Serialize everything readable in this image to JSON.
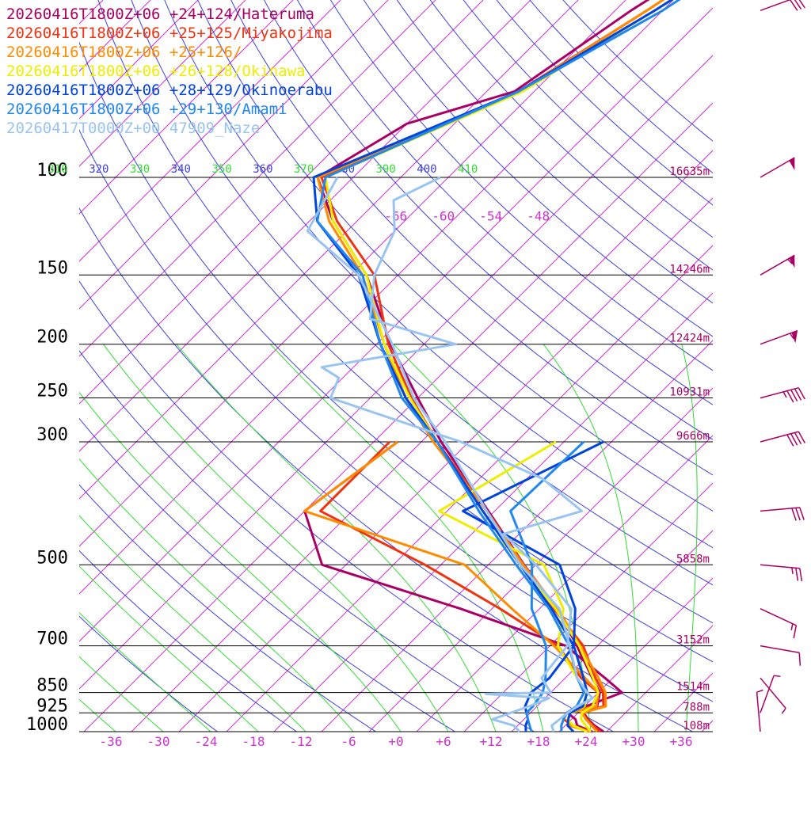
{
  "chart_data": {
    "type": "line",
    "chart_kind": "skew-T log-P sounding",
    "colors": {
      "isobar": "#000000",
      "isotherm": "#cc33cc",
      "dry_adiabat": "#4040dd",
      "moist_adiabat": "#33dd33",
      "height_label": "#aa0066",
      "temp_tick": "#cc33cc"
    },
    "pressure_ticks": [
      {
        "p": 100,
        "label": "100",
        "height": "16635m"
      },
      {
        "p": 150,
        "label": "150",
        "height": "14246m"
      },
      {
        "p": 200,
        "label": "200",
        "height": "12424m"
      },
      {
        "p": 250,
        "label": "250",
        "height": "10931m"
      },
      {
        "p": 300,
        "label": "300",
        "height": "9666m"
      },
      {
        "p": 500,
        "label": "500",
        "height": "5858m"
      },
      {
        "p": 700,
        "label": "700",
        "height": "3152m"
      },
      {
        "p": 850,
        "label": "850",
        "height": "1514m"
      },
      {
        "p": 925,
        "label": "925",
        "height": "788m"
      },
      {
        "p": 1000,
        "label": "1000",
        "height": "108m"
      }
    ],
    "temp_ticks": [
      {
        "t": -36,
        "label": "-36"
      },
      {
        "t": -30,
        "label": "-30"
      },
      {
        "t": -24,
        "label": "-24"
      },
      {
        "t": -18,
        "label": "-18"
      },
      {
        "t": -12,
        "label": "-12"
      },
      {
        "t": -6,
        "label": "-6"
      },
      {
        "t": 0,
        "label": "+0"
      },
      {
        "t": 6,
        "label": "+6"
      },
      {
        "t": 12,
        "label": "+12"
      },
      {
        "t": 18,
        "label": "+18"
      },
      {
        "t": 24,
        "label": "+24"
      },
      {
        "t": 30,
        "label": "+30"
      },
      {
        "t": 36,
        "label": "+36"
      }
    ],
    "upper_temp_labels": [
      {
        "t": -66,
        "label": "-66"
      },
      {
        "t": -60,
        "label": "-60"
      },
      {
        "t": -54,
        "label": "-54"
      },
      {
        "t": -48,
        "label": "-48"
      }
    ],
    "theta_labels": [
      {
        "label": "310",
        "kind": "moist"
      },
      {
        "label": "320",
        "kind": "dry"
      },
      {
        "label": "330",
        "kind": "moist"
      },
      {
        "label": "340",
        "kind": "dry"
      },
      {
        "label": "350",
        "kind": "moist"
      },
      {
        "label": "360",
        "kind": "dry"
      },
      {
        "label": "370",
        "kind": "moist"
      },
      {
        "label": "380",
        "kind": "dry"
      },
      {
        "label": "390",
        "kind": "moist"
      },
      {
        "label": "400",
        "kind": "dry"
      },
      {
        "label": "410",
        "kind": "moist"
      }
    ],
    "series": [
      {
        "name": "20260416T1800Z+06 +24+124/Hateruma",
        "color": "#aa0066",
        "temperature": [
          [
            1000,
            25.6
          ],
          [
            975,
            23.7
          ],
          [
            950,
            22.1
          ],
          [
            925,
            20.7
          ],
          [
            900,
            21.6
          ],
          [
            850,
            20.2
          ],
          [
            800,
            17.4
          ],
          [
            700,
            11.4
          ],
          [
            600,
            4.2
          ],
          [
            500,
            -5.5
          ],
          [
            400,
            -16.8
          ],
          [
            300,
            -31.5
          ],
          [
            250,
            -40.0
          ],
          [
            200,
            -50.2
          ],
          [
            150,
            -62.0
          ],
          [
            120,
            -73.0
          ],
          [
            100,
            -80.5
          ],
          [
            80,
            -76.0
          ],
          [
            70,
            -66.5
          ],
          [
            50,
            -62.0
          ],
          [
            30,
            -53.0
          ]
        ],
        "dewpoint": [
          [
            1000,
            24.2
          ],
          [
            975,
            21.5
          ],
          [
            950,
            20.5
          ],
          [
            925,
            18.7
          ],
          [
            900,
            20.2
          ],
          [
            850,
            23.0
          ],
          [
            800,
            19.0
          ],
          [
            700,
            10.0
          ],
          [
            600,
            -8.0
          ],
          [
            500,
            -31.0
          ],
          [
            400,
            -40.0
          ],
          [
            300,
            -37.0
          ]
        ]
      },
      {
        "name": "20260416T1800Z+06 +25+125/Miyakojima",
        "color": "#ee3311",
        "temperature": [
          [
            1000,
            25.2
          ],
          [
            975,
            23.5
          ],
          [
            950,
            22.0
          ],
          [
            925,
            20.4
          ],
          [
            900,
            22.4
          ],
          [
            850,
            20.6
          ],
          [
            800,
            17.8
          ],
          [
            700,
            12.2
          ],
          [
            600,
            3.8
          ],
          [
            500,
            -5.6
          ],
          [
            400,
            -17.0
          ],
          [
            300,
            -32.0
          ],
          [
            250,
            -40.8
          ],
          [
            200,
            -50.5
          ],
          [
            150,
            -61.0
          ],
          [
            120,
            -72.5
          ],
          [
            100,
            -80.0
          ],
          [
            70,
            -66.0
          ],
          [
            50,
            -60.0
          ],
          [
            30,
            -52.0
          ]
        ],
        "dewpoint": [
          [
            1000,
            24.0
          ],
          [
            975,
            21.0
          ],
          [
            950,
            19.0
          ],
          [
            925,
            18.5
          ],
          [
            900,
            21.0
          ],
          [
            850,
            20.0
          ],
          [
            800,
            16.0
          ],
          [
            700,
            9.0
          ],
          [
            600,
            -3.0
          ],
          [
            500,
            -18.0
          ],
          [
            400,
            -38.0
          ],
          [
            300,
            -38.0
          ]
        ]
      },
      {
        "name": "20260416T1800Z+06 +25+126/",
        "color": "#ff8c00",
        "temperature": [
          [
            1000,
            24.8
          ],
          [
            975,
            23.3
          ],
          [
            950,
            21.8
          ],
          [
            925,
            20.6
          ],
          [
            900,
            22.7
          ],
          [
            850,
            20.9
          ],
          [
            800,
            18.2
          ],
          [
            700,
            11.8
          ],
          [
            600,
            4.3
          ],
          [
            500,
            -5.6
          ],
          [
            400,
            -17.0
          ],
          [
            300,
            -32.5
          ],
          [
            250,
            -41.5
          ],
          [
            200,
            -51.0
          ],
          [
            150,
            -62.5
          ],
          [
            120,
            -73.5
          ],
          [
            100,
            -80.5
          ],
          [
            70,
            -65.8
          ],
          [
            50,
            -60.0
          ],
          [
            30,
            -52.0
          ]
        ],
        "dewpoint": [
          [
            1000,
            23.8
          ],
          [
            975,
            20.5
          ],
          [
            950,
            19.5
          ],
          [
            925,
            19.0
          ],
          [
            900,
            21.5
          ],
          [
            850,
            20.0
          ],
          [
            800,
            16.5
          ],
          [
            700,
            8.5
          ],
          [
            600,
            -1.5
          ],
          [
            500,
            -13.0
          ],
          [
            400,
            -40.0
          ],
          [
            300,
            -37.0
          ]
        ]
      },
      {
        "name": "20260416T1800Z+06 +26+128/Okinawa",
        "color": "#eeee00",
        "temperature": [
          [
            1000,
            24.0
          ],
          [
            975,
            22.6
          ],
          [
            950,
            21.2
          ],
          [
            925,
            20.5
          ],
          [
            900,
            21.0
          ],
          [
            850,
            20.0
          ],
          [
            800,
            17.5
          ],
          [
            700,
            11.7
          ],
          [
            600,
            4.0
          ],
          [
            500,
            -6.0
          ],
          [
            400,
            -17.5
          ],
          [
            300,
            -32.0
          ],
          [
            250,
            -41.0
          ],
          [
            200,
            -51.0
          ],
          [
            150,
            -62.0
          ],
          [
            120,
            -73.0
          ],
          [
            100,
            -79.5
          ],
          [
            70,
            -65.5
          ],
          [
            50,
            -59.0
          ],
          [
            30,
            -51.0
          ]
        ],
        "dewpoint": [
          [
            1000,
            23.5
          ],
          [
            975,
            21.0
          ],
          [
            950,
            19.5
          ],
          [
            925,
            19.0
          ],
          [
            900,
            20.0
          ],
          [
            850,
            18.5
          ],
          [
            800,
            15.5
          ],
          [
            700,
            9.0
          ],
          [
            600,
            5.0
          ],
          [
            500,
            -3.0
          ],
          [
            400,
            -23.0
          ],
          [
            300,
            -17.0
          ]
        ]
      },
      {
        "name": "20260416T1800Z+06 +28+129/Okinoerabu",
        "color": "#0044dd",
        "temperature": [
          [
            1000,
            21.8
          ],
          [
            975,
            20.3
          ],
          [
            950,
            19.6
          ],
          [
            925,
            19.0
          ],
          [
            900,
            19.8
          ],
          [
            850,
            18.6
          ],
          [
            800,
            16.3
          ],
          [
            700,
            11.0
          ],
          [
            600,
            3.5
          ],
          [
            500,
            -6.0
          ],
          [
            400,
            -17.5
          ],
          [
            300,
            -32.0
          ],
          [
            250,
            -41.5
          ],
          [
            200,
            -51.5
          ],
          [
            150,
            -63.0
          ],
          [
            120,
            -75.0
          ],
          [
            100,
            -81.0
          ],
          [
            70,
            -66.0
          ],
          [
            50,
            -59.0
          ],
          [
            30,
            -50.0
          ]
        ],
        "dewpoint": [
          [
            1000,
            15.8
          ],
          [
            975,
            15.0
          ],
          [
            950,
            14.5
          ],
          [
            925,
            13.5
          ],
          [
            900,
            12.5
          ],
          [
            850,
            11.5
          ],
          [
            800,
            12.0
          ],
          [
            700,
            11.0
          ],
          [
            600,
            6.5
          ],
          [
            500,
            -1.0
          ],
          [
            400,
            -20.0
          ],
          [
            300,
            -11.0
          ]
        ]
      },
      {
        "name": "20260416T1800Z+06 +29+130/Amami",
        "color": "#2288ee",
        "temperature": [
          [
            1000,
            20.3
          ],
          [
            975,
            19.5
          ],
          [
            950,
            19.0
          ],
          [
            925,
            18.6
          ],
          [
            900,
            19.0
          ],
          [
            850,
            18.2
          ],
          [
            800,
            15.5
          ],
          [
            700,
            10.4
          ],
          [
            600,
            3.2
          ],
          [
            500,
            -6.5
          ],
          [
            400,
            -18.0
          ],
          [
            300,
            -32.0
          ],
          [
            250,
            -42.0
          ],
          [
            200,
            -51.5
          ],
          [
            150,
            -62.5
          ],
          [
            120,
            -75.0
          ],
          [
            100,
            -79.5
          ],
          [
            70,
            -66.0
          ],
          [
            50,
            -58.0
          ],
          [
            30,
            -50.0
          ]
        ],
        "dewpoint": [
          [
            1000,
            16.5
          ],
          [
            975,
            15.5
          ],
          [
            950,
            14.5
          ],
          [
            925,
            13.5
          ],
          [
            900,
            13.5
          ],
          [
            850,
            13.0
          ],
          [
            800,
            11.5
          ],
          [
            700,
            7.5
          ],
          [
            600,
            1.0
          ],
          [
            500,
            -4.5
          ],
          [
            400,
            -14.0
          ],
          [
            300,
            -13.5
          ]
        ]
      },
      {
        "name": "20260417T0000Z+00 47909_Naze",
        "color": "#99c4f0",
        "temperature": [
          [
            1000,
            19.3
          ],
          [
            975,
            18.3
          ],
          [
            950,
            18.5
          ],
          [
            925,
            18.7
          ],
          [
            900,
            19.1
          ],
          [
            870,
            20.0
          ],
          [
            850,
            18.6
          ],
          [
            800,
            15.5
          ],
          [
            700,
            10.5
          ],
          [
            600,
            4.5
          ],
          [
            500,
            -6.0
          ],
          [
            400,
            -17.0
          ],
          [
            300,
            -31.0
          ],
          [
            250,
            -40.5
          ],
          [
            200,
            -50.0
          ],
          [
            150,
            -63.0
          ],
          [
            125,
            -75.0
          ],
          [
            100,
            -78.0
          ]
        ],
        "dewpoint": [
          [
            1000,
            15.0
          ],
          [
            975,
            13.5
          ],
          [
            950,
            10.0
          ],
          [
            925,
            11.5
          ],
          [
            900,
            13.0
          ],
          [
            870,
            14.5
          ],
          [
            855,
            6.0
          ],
          [
            850,
            14.0
          ],
          [
            800,
            11.0
          ],
          [
            700,
            10.2
          ],
          [
            600,
            6.0
          ],
          [
            500,
            -4.0
          ],
          [
            440,
            -12.0
          ],
          [
            400,
            -5.0
          ],
          [
            350,
            -14.0
          ],
          [
            300,
            -29.0
          ],
          [
            250,
            -51.0
          ],
          [
            230,
            -52.5
          ],
          [
            220,
            -56.0
          ],
          [
            200,
            -42.0
          ],
          [
            180,
            -56.0
          ],
          [
            150,
            -61.0
          ],
          [
            125,
            -64.0
          ],
          [
            110,
            -68.0
          ],
          [
            100,
            -65.0
          ]
        ]
      }
    ],
    "wind_barbs": [
      {
        "p": 30,
        "dir": 300,
        "speed": 0
      },
      {
        "p": 50,
        "dir": 250,
        "speed": 30
      },
      {
        "p": 100,
        "dir": 240,
        "speed": 50
      },
      {
        "p": 150,
        "dir": 240,
        "speed": 55
      },
      {
        "p": 200,
        "dir": 250,
        "speed": 55
      },
      {
        "p": 250,
        "dir": 255,
        "speed": 45
      },
      {
        "p": 300,
        "dir": 255,
        "speed": 40
      },
      {
        "p": 400,
        "dir": 265,
        "speed": 30
      },
      {
        "p": 500,
        "dir": 275,
        "speed": 25
      },
      {
        "p": 600,
        "dir": 295,
        "speed": 15
      },
      {
        "p": 700,
        "dir": 280,
        "speed": 10
      },
      {
        "p": 800,
        "dir": 320,
        "speed": 5
      },
      {
        "p": 925,
        "dir": 200,
        "speed": 5
      },
      {
        "p": 1000,
        "dir": 175,
        "speed": 5
      }
    ]
  }
}
